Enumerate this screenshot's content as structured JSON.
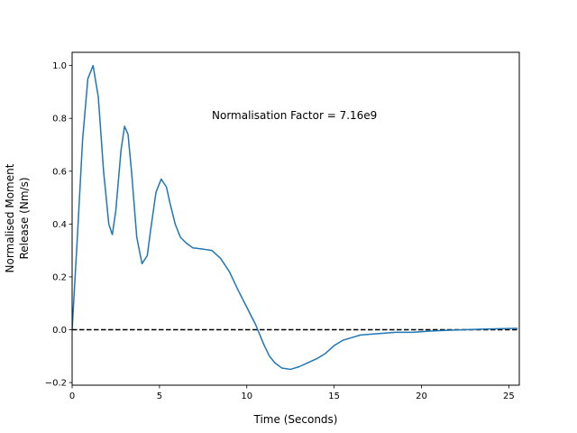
{
  "chart_data": {
    "type": "line",
    "title": "",
    "xlabel": "Time (Seconds)",
    "ylabel_lines": [
      "Normalised Moment",
      "Release (Nm/s)"
    ],
    "xlim": [
      0,
      25.6
    ],
    "ylim": [
      -0.21,
      1.05
    ],
    "xticks": [
      0,
      5,
      10,
      15,
      20,
      25
    ],
    "yticks": [
      -0.2,
      0.0,
      0.2,
      0.4,
      0.6,
      0.8,
      1.0
    ],
    "xtick_labels": [
      "0",
      "5",
      "10",
      "15",
      "20",
      "25"
    ],
    "ytick_labels": [
      "−0.2",
      "0.0",
      "0.2",
      "0.4",
      "0.6",
      "0.8",
      "1.0"
    ],
    "grid": false,
    "legend": "none",
    "annotation": {
      "text": "Normalisation Factor = 7.16e9",
      "x": 8.0,
      "y": 0.8
    },
    "reference_line": {
      "y": 0.0,
      "style": "dashed",
      "color": "#000000"
    },
    "series": [
      {
        "color": "#1f77b4",
        "x": [
          0,
          0.3,
          0.6,
          0.9,
          1.2,
          1.5,
          1.8,
          2.1,
          2.3,
          2.5,
          2.8,
          3.0,
          3.2,
          3.4,
          3.7,
          4.0,
          4.3,
          4.5,
          4.8,
          5.1,
          5.4,
          5.6,
          5.9,
          6.2,
          6.5,
          6.9,
          7.5,
          8.0,
          8.5,
          9.0,
          9.5,
          10.0,
          10.5,
          11.0,
          11.3,
          11.6,
          12.0,
          12.5,
          13.0,
          13.5,
          14.0,
          14.5,
          15.0,
          15.5,
          16.0,
          16.5,
          17.5,
          18.5,
          19.5,
          20.5,
          21.5,
          22.5,
          23.5,
          24.5,
          25.5
        ],
        "y": [
          0.0,
          0.35,
          0.72,
          0.95,
          1.0,
          0.88,
          0.6,
          0.4,
          0.36,
          0.45,
          0.68,
          0.77,
          0.74,
          0.6,
          0.35,
          0.25,
          0.28,
          0.38,
          0.52,
          0.57,
          0.54,
          0.48,
          0.4,
          0.35,
          0.33,
          0.31,
          0.305,
          0.3,
          0.27,
          0.22,
          0.15,
          0.085,
          0.02,
          -0.06,
          -0.1,
          -0.125,
          -0.145,
          -0.15,
          -0.14,
          -0.125,
          -0.11,
          -0.09,
          -0.06,
          -0.04,
          -0.03,
          -0.02,
          -0.015,
          -0.01,
          -0.01,
          -0.005,
          -0.002,
          0.0,
          0.002,
          0.004,
          0.005
        ]
      }
    ]
  }
}
